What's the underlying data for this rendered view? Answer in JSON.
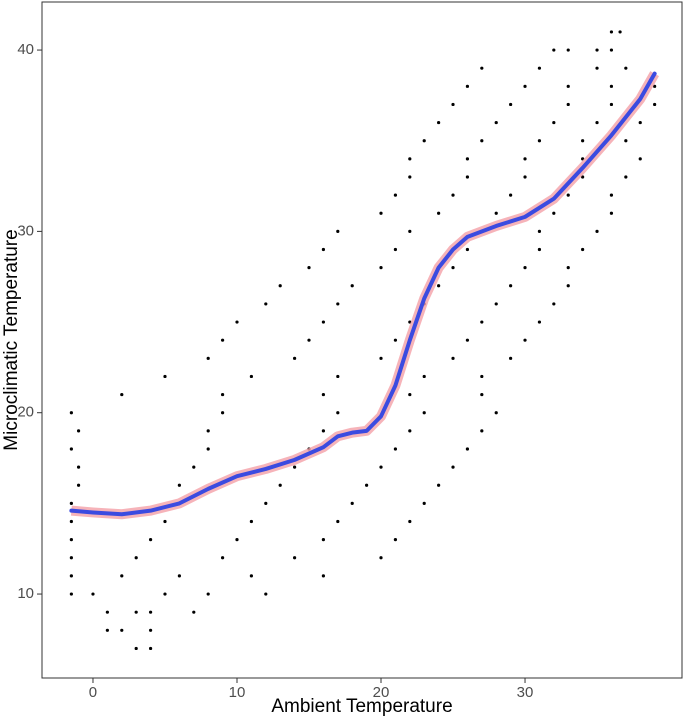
{
  "chart_data": {
    "type": "scatter",
    "x_label": "Ambient Temperature",
    "y_label": "Microclimatic Temperature",
    "xlim": [
      -3.54,
      40.9
    ],
    "ylim": [
      5.37,
      42.65
    ],
    "xticks": [
      0,
      10,
      20,
      30
    ],
    "yticks": [
      10,
      20,
      30,
      40
    ],
    "grid": false,
    "series": [
      {
        "kind": "points",
        "color": "#000000",
        "x": [
          3,
          4,
          1,
          2,
          4,
          1,
          3,
          4,
          7,
          -1.5,
          0,
          5,
          8,
          12,
          -1.5,
          2,
          6,
          11,
          16,
          -1.5,
          3,
          9,
          14,
          20,
          -1.5,
          4,
          10,
          16,
          21,
          -1.5,
          5,
          11,
          17,
          22,
          -1.5,
          6,
          12,
          18,
          23,
          -1,
          6,
          13,
          19,
          24,
          -1,
          7,
          14,
          20,
          25,
          -1.5,
          8,
          15,
          21,
          26,
          -1,
          8,
          16,
          22,
          27,
          -1.5,
          9,
          17,
          23,
          28,
          2,
          9,
          16,
          22,
          27,
          5,
          11,
          17,
          23,
          27,
          8,
          14,
          20,
          25,
          29,
          9,
          15,
          21,
          26,
          30,
          10,
          16,
          22,
          27,
          31,
          12,
          17,
          23,
          28,
          32,
          13,
          18,
          24,
          29,
          33,
          15,
          20,
          25,
          30,
          33,
          16,
          21,
          26,
          31,
          34,
          17,
          22,
          27,
          31,
          35,
          20,
          24,
          28,
          32,
          36,
          21,
          25,
          29,
          33,
          36,
          22,
          26,
          30,
          34,
          37,
          22,
          26,
          30,
          34,
          38,
          23,
          27,
          31,
          34,
          37,
          24,
          28,
          32,
          35,
          38,
          25,
          29,
          33,
          36,
          39,
          26,
          30,
          33,
          36,
          39,
          27,
          31,
          35,
          37,
          32,
          33,
          35,
          36,
          36,
          36.6
        ],
        "values": [
          7,
          7,
          8,
          8,
          8,
          9,
          9,
          9,
          9,
          10,
          10,
          10,
          10,
          10,
          11,
          11,
          11,
          11,
          11,
          12,
          12,
          12,
          12,
          12,
          13,
          13,
          13,
          13,
          13,
          14,
          14,
          14,
          14,
          14,
          15,
          15,
          15,
          15,
          15,
          16,
          16,
          16,
          16,
          16,
          17,
          17,
          17,
          17,
          17,
          18,
          18,
          18,
          18,
          18,
          19,
          19,
          19,
          19,
          19,
          20,
          20,
          20,
          20,
          20,
          21,
          21,
          21,
          21,
          21,
          22,
          22,
          22,
          22,
          22,
          23,
          23,
          23,
          23,
          23,
          24,
          24,
          24,
          24,
          24,
          25,
          25,
          25,
          25,
          25,
          26,
          26,
          26,
          26,
          26,
          27,
          27,
          27,
          27,
          27,
          28,
          28,
          28,
          28,
          28,
          29,
          29,
          29,
          29,
          29,
          30,
          30,
          30,
          30,
          30,
          31,
          31,
          31,
          31,
          31,
          32,
          32,
          32,
          32,
          32,
          33,
          33,
          33,
          33,
          33,
          34,
          34,
          34,
          34,
          34,
          35,
          35,
          35,
          35,
          35,
          36,
          36,
          36,
          36,
          36,
          37,
          37,
          37,
          37,
          37,
          38,
          38,
          38,
          38,
          38,
          39,
          39,
          39,
          39,
          40,
          40,
          40,
          40,
          41,
          41
        ]
      },
      {
        "kind": "smooth",
        "color": "#3b4be0",
        "band_color": "#f4a0a8",
        "x": [
          -1.5,
          0,
          2,
          4,
          6,
          8,
          10,
          12,
          14,
          16,
          17,
          18,
          19,
          20,
          21,
          22,
          23,
          24,
          25,
          26,
          28,
          30,
          32,
          34,
          36,
          38,
          39
        ],
        "values": [
          14.6,
          14.5,
          14.4,
          14.6,
          15.0,
          15.8,
          16.5,
          16.9,
          17.4,
          18.1,
          18.7,
          18.9,
          19.0,
          19.8,
          21.5,
          24.0,
          26.3,
          28.0,
          29.0,
          29.7,
          30.3,
          30.8,
          31.8,
          33.5,
          35.3,
          37.3,
          38.7
        ]
      }
    ]
  }
}
